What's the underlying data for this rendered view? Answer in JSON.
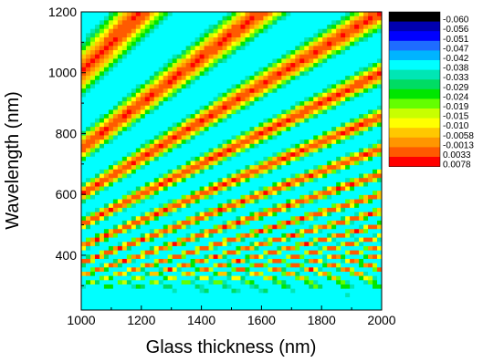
{
  "chart_data": {
    "type": "heatmap",
    "title": "",
    "xlabel": "Glass thickness (nm)",
    "ylabel": "Wavelength (nm)",
    "xlim": [
      1000,
      2000
    ],
    "ylim": [
      220,
      1200
    ],
    "x_ticks": [
      1000,
      1200,
      1400,
      1600,
      1800,
      2000
    ],
    "y_ticks": [
      400,
      600,
      800,
      1000,
      1200
    ],
    "grid": false,
    "legend_position": "right",
    "colorbar": {
      "levels": [
        "-0.060",
        "-0.056",
        "-0.051",
        "-0.047",
        "-0.042",
        "-0.038",
        "-0.033",
        "-0.029",
        "-0.024",
        "-0.019",
        "-0.015",
        "-0.010",
        "-0.0058",
        "-0.0013",
        "0.0033",
        "0.0078"
      ],
      "colors": [
        "#000000",
        "#0000b0",
        "#0000ff",
        "#1e6cff",
        "#00b4ff",
        "#00ffff",
        "#00e6b4",
        "#00dc64",
        "#00e600",
        "#64ff00",
        "#c8ff00",
        "#ffff00",
        "#ffc800",
        "#ff9600",
        "#ff5a00",
        "#ff0000"
      ]
    }
  }
}
